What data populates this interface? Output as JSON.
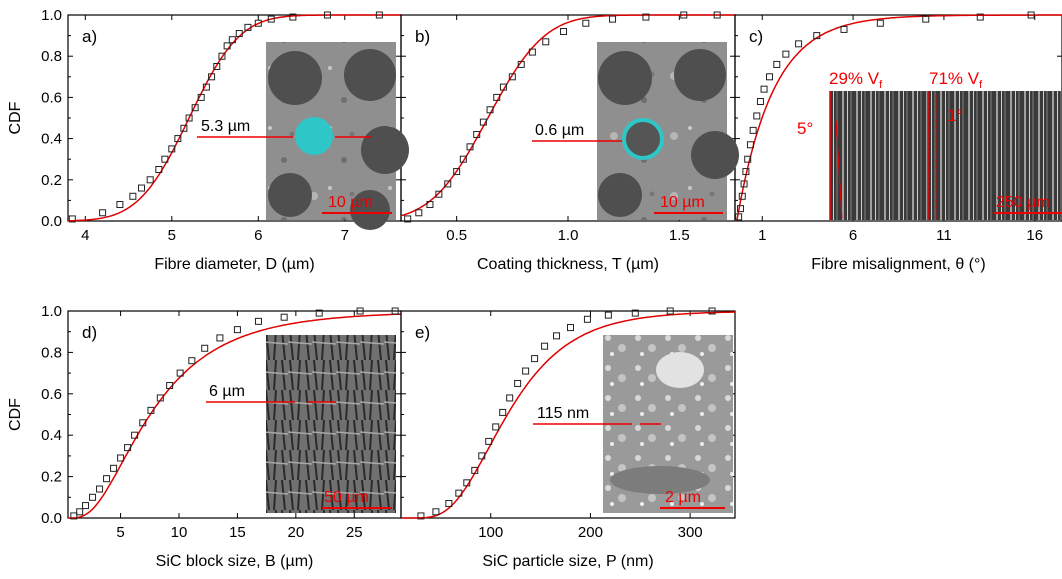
{
  "y_axis_label": "CDF",
  "y_ticks": [
    "0.0",
    "0.2",
    "0.4",
    "0.6",
    "0.8",
    "1.0"
  ],
  "chart_data": [
    {
      "id": "a",
      "type": "scatter",
      "panel_label": "a)",
      "xlabel": "Fibre diameter, D (µm)",
      "ylabel": "CDF",
      "xlim": [
        3.8,
        7.65
      ],
      "ylim": [
        0,
        1
      ],
      "x_ticks": [
        4,
        5,
        6,
        7
      ],
      "grid": false,
      "series": [
        {
          "marker": "open-square",
          "x": [
            3.85,
            4.2,
            4.4,
            4.55,
            4.65,
            4.75,
            4.85,
            4.92,
            5.0,
            5.07,
            5.14,
            5.2,
            5.27,
            5.34,
            5.4,
            5.46,
            5.52,
            5.58,
            5.64,
            5.7,
            5.78,
            5.88,
            6.0,
            6.15,
            6.4,
            6.8,
            7.4
          ],
          "y": [
            0.01,
            0.04,
            0.08,
            0.12,
            0.16,
            0.2,
            0.25,
            0.3,
            0.35,
            0.4,
            0.45,
            0.5,
            0.55,
            0.6,
            0.65,
            0.7,
            0.75,
            0.8,
            0.85,
            0.88,
            0.91,
            0.94,
            0.96,
            0.98,
            0.99,
            1.0,
            1.0
          ]
        },
        {
          "style": "red-line",
          "distribution": "normal-cdf",
          "mu": 5.2,
          "sigma": 0.46
        }
      ],
      "inset": {
        "scale_bar_label": "10 µm",
        "measurement_label": "5.3 µm"
      }
    },
    {
      "id": "b",
      "type": "scatter",
      "panel_label": "b)",
      "xlabel": "Coating thickness, T (µm)",
      "ylabel": "",
      "xlim": [
        0.25,
        1.75
      ],
      "ylim": [
        0,
        1
      ],
      "x_ticks": [
        0.5,
        1.0,
        1.5
      ],
      "grid": false,
      "series": [
        {
          "marker": "open-square",
          "x": [
            0.28,
            0.33,
            0.38,
            0.42,
            0.46,
            0.5,
            0.53,
            0.56,
            0.59,
            0.62,
            0.65,
            0.68,
            0.71,
            0.75,
            0.79,
            0.84,
            0.9,
            0.98,
            1.08,
            1.2,
            1.35,
            1.52,
            1.67
          ],
          "y": [
            0.01,
            0.04,
            0.08,
            0.13,
            0.18,
            0.24,
            0.3,
            0.36,
            0.42,
            0.48,
            0.54,
            0.6,
            0.65,
            0.7,
            0.76,
            0.82,
            0.87,
            0.92,
            0.96,
            0.98,
            0.99,
            1.0,
            1.0
          ]
        },
        {
          "style": "red-line",
          "distribution": "normal-cdf",
          "mu": 0.64,
          "sigma": 0.2
        }
      ],
      "inset": {
        "scale_bar_label": "10 µm",
        "measurement_label": "0.6 µm"
      }
    },
    {
      "id": "c",
      "type": "scatter",
      "panel_label": "c)",
      "xlabel": "Fibre misalignment, θ (°)",
      "ylabel": "",
      "xlim": [
        -0.5,
        17.5
      ],
      "ylim": [
        0,
        1
      ],
      "x_ticks": [
        1,
        6,
        11,
        16
      ],
      "grid": false,
      "series": [
        {
          "marker": "open-square",
          "x": [
            -0.3,
            -0.2,
            -0.1,
            0.0,
            0.1,
            0.2,
            0.35,
            0.5,
            0.7,
            0.9,
            1.1,
            1.4,
            1.8,
            2.3,
            3.0,
            4.0,
            5.5,
            7.5,
            10.0,
            13.0,
            15.8
          ],
          "y": [
            0.02,
            0.06,
            0.12,
            0.18,
            0.24,
            0.3,
            0.37,
            0.44,
            0.51,
            0.58,
            0.64,
            0.7,
            0.76,
            0.81,
            0.86,
            0.9,
            0.93,
            0.96,
            0.98,
            0.99,
            1.0
          ]
        },
        {
          "style": "red-line",
          "distribution": "exponential-cdf",
          "x0": -0.4,
          "scale": 2.0
        }
      ],
      "inset": {
        "scale_bar_label": "250 µm",
        "fraction_label_1": "29% V",
        "fraction_label_2": "71% V",
        "subscript": "f",
        "angle_label_1": "5°",
        "angle_label_2": "1°"
      }
    },
    {
      "id": "d",
      "type": "scatter",
      "panel_label": "d)",
      "xlabel": "SiC block size, B (µm)",
      "ylabel": "CDF",
      "xlim": [
        0.5,
        29
      ],
      "ylim": [
        0,
        1
      ],
      "x_ticks": [
        5,
        10,
        15,
        20,
        25
      ],
      "grid": false,
      "series": [
        {
          "marker": "open-square",
          "x": [
            1.0,
            1.5,
            2.0,
            2.6,
            3.2,
            3.8,
            4.4,
            5.0,
            5.6,
            6.2,
            6.9,
            7.6,
            8.4,
            9.2,
            10.1,
            11.1,
            12.2,
            13.5,
            15.0,
            16.8,
            19.0,
            22.0,
            25.5,
            28.5
          ],
          "y": [
            0.01,
            0.03,
            0.06,
            0.1,
            0.14,
            0.19,
            0.24,
            0.29,
            0.34,
            0.4,
            0.46,
            0.52,
            0.58,
            0.64,
            0.7,
            0.76,
            0.82,
            0.87,
            0.91,
            0.95,
            0.97,
            0.99,
            1.0,
            1.0
          ]
        },
        {
          "style": "red-line",
          "distribution": "lognormal-cdf",
          "mu": 2.02,
          "sigma": 0.62
        }
      ],
      "inset": {
        "scale_bar_label": "50 µm",
        "measurement_label": "6 µm"
      }
    },
    {
      "id": "e",
      "type": "scatter",
      "panel_label": "e)",
      "xlabel": "SiC particle size, P (nm)",
      "ylabel": "",
      "xlim": [
        10,
        345
      ],
      "ylim": [
        0,
        1
      ],
      "x_ticks": [
        100,
        200,
        300
      ],
      "grid": false,
      "series": [
        {
          "marker": "open-square",
          "x": [
            30,
            45,
            58,
            68,
            76,
            84,
            91,
            98,
            105,
            112,
            119,
            127,
            135,
            144,
            154,
            166,
            180,
            197,
            218,
            245,
            280,
            322
          ],
          "y": [
            0.01,
            0.03,
            0.07,
            0.12,
            0.17,
            0.23,
            0.3,
            0.37,
            0.44,
            0.51,
            0.58,
            0.65,
            0.71,
            0.77,
            0.83,
            0.88,
            0.92,
            0.96,
            0.98,
            0.99,
            1.0,
            1.0
          ]
        },
        {
          "style": "red-line",
          "distribution": "lognormal-cdf",
          "mu": 4.76,
          "sigma": 0.42
        }
      ],
      "inset": {
        "scale_bar_label": "2 µm",
        "measurement_label": "115 nm"
      }
    }
  ]
}
